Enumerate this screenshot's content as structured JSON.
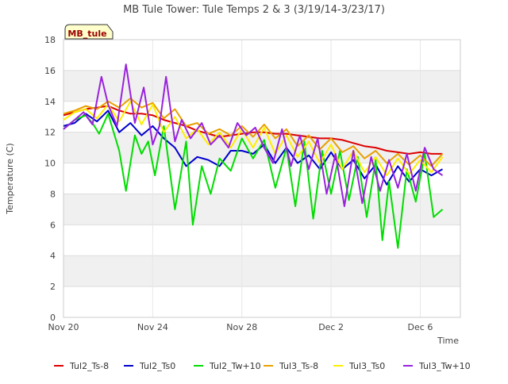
{
  "chart_data": {
    "type": "line",
    "title": "MB Tule Tower: Tule Temps 2 & 3 (3/19/14-3/23/17)",
    "xlabel": "Time",
    "ylabel": "Temperature (C)",
    "station_badge": "MB_tule",
    "ylim": [
      0,
      18
    ],
    "xlim": [
      0,
      17.8
    ],
    "y_ticks": [
      0,
      2,
      4,
      6,
      8,
      10,
      12,
      14,
      16,
      18
    ],
    "x_ticks": [
      {
        "value": 0,
        "label": "Nov 20"
      },
      {
        "value": 4,
        "label": "Nov 24"
      },
      {
        "value": 8,
        "label": "Nov 28"
      },
      {
        "value": 12,
        "label": "Dec 2"
      },
      {
        "value": 16,
        "label": "Dec 6"
      }
    ],
    "grid": true,
    "legend_position": "bottom",
    "series": [
      {
        "name": "Tul2_Ts-8",
        "color": "#dd0000",
        "x": [
          0,
          0.5,
          1,
          1.5,
          2,
          2.5,
          3,
          3.5,
          4,
          4.5,
          5,
          5.5,
          6,
          6.5,
          7,
          7.5,
          8,
          8.5,
          9,
          9.5,
          10,
          10.5,
          11,
          11.5,
          12,
          12.5,
          13,
          13.5,
          14,
          14.5,
          15,
          15.5,
          16,
          16.5,
          17
        ],
        "y": [
          13.1,
          13.3,
          13.5,
          13.6,
          13.7,
          13.4,
          13.2,
          13.2,
          13.1,
          12.8,
          12.6,
          12.4,
          12.1,
          11.9,
          11.7,
          11.8,
          11.9,
          12.0,
          12.0,
          11.9,
          11.9,
          11.8,
          11.7,
          11.6,
          11.6,
          11.5,
          11.3,
          11.1,
          11.0,
          10.8,
          10.7,
          10.6,
          10.7,
          10.6,
          10.6
        ]
      },
      {
        "name": "Tul2_Ts0",
        "color": "#0000cc",
        "x": [
          0,
          0.5,
          1,
          1.5,
          2,
          2.5,
          3,
          3.5,
          4,
          4.5,
          5,
          5.5,
          6,
          6.5,
          7,
          7.5,
          8,
          8.5,
          9,
          9.5,
          10,
          10.5,
          11,
          11.5,
          12,
          12.5,
          13,
          13.5,
          14,
          14.5,
          15,
          15.5,
          16,
          16.5,
          17
        ],
        "y": [
          12.4,
          12.6,
          13.2,
          12.7,
          13.4,
          12.0,
          12.6,
          11.8,
          12.4,
          11.6,
          11.0,
          9.8,
          10.4,
          10.2,
          9.8,
          10.8,
          10.8,
          10.6,
          11.2,
          10.0,
          11.0,
          10.0,
          10.5,
          9.6,
          10.7,
          9.6,
          10.2,
          9.0,
          9.9,
          8.6,
          9.8,
          8.8,
          9.6,
          9.2,
          9.6
        ]
      },
      {
        "name": "Tul2_Tw+10",
        "color": "#00dd00",
        "x": [
          0,
          0.5,
          1,
          1.3,
          1.6,
          2,
          2.5,
          2.8,
          3.2,
          3.5,
          3.8,
          4.1,
          4.5,
          5,
          5.5,
          5.8,
          6.2,
          6.6,
          7,
          7.5,
          8,
          8.5,
          9,
          9.5,
          10,
          10.4,
          10.8,
          11.2,
          11.6,
          12,
          12.4,
          12.8,
          13.2,
          13.6,
          14,
          14.3,
          14.6,
          15,
          15.4,
          15.8,
          16.2,
          16.6,
          17
        ],
        "y": [
          12.2,
          12.8,
          13.1,
          12.6,
          11.9,
          13.2,
          10.8,
          8.2,
          11.8,
          10.6,
          11.4,
          9.2,
          12.4,
          7.0,
          11.4,
          6.0,
          9.8,
          8.0,
          10.3,
          9.5,
          11.6,
          10.3,
          11.5,
          8.4,
          11.0,
          7.2,
          11.4,
          6.4,
          10.8,
          8.0,
          10.8,
          7.6,
          10.4,
          6.5,
          10.2,
          5.0,
          8.8,
          4.5,
          9.6,
          7.5,
          10.6,
          6.5,
          7.0
        ]
      },
      {
        "name": "Tul3_Ts-8",
        "color": "#e8a000",
        "x": [
          0,
          0.5,
          1,
          1.5,
          2,
          2.5,
          3,
          3.5,
          4,
          4.5,
          5,
          5.5,
          6,
          6.5,
          7,
          7.5,
          8,
          8.5,
          9,
          9.5,
          10,
          10.5,
          11,
          11.5,
          12,
          12.5,
          13,
          13.5,
          14,
          14.5,
          15,
          15.5,
          16,
          16.5,
          17
        ],
        "y": [
          13.2,
          13.4,
          13.7,
          13.5,
          14.0,
          13.6,
          14.2,
          13.6,
          13.9,
          12.9,
          13.5,
          12.4,
          12.6,
          11.9,
          12.2,
          11.8,
          12.4,
          11.7,
          12.5,
          11.6,
          12.2,
          11.1,
          11.8,
          10.9,
          11.6,
          10.7,
          11.1,
          10.3,
          10.8,
          10.0,
          10.6,
          9.9,
          10.5,
          9.8,
          10.6
        ]
      },
      {
        "name": "Tul3_Ts0",
        "color": "#ffee00",
        "x": [
          0,
          0.5,
          1,
          1.5,
          2,
          2.5,
          3,
          3.5,
          4,
          4.5,
          5,
          5.5,
          6,
          6.5,
          7,
          7.5,
          8,
          8.5,
          9,
          9.5,
          10,
          10.5,
          11,
          11.5,
          12,
          12.5,
          13,
          13.5,
          14,
          14.5,
          15,
          15.5,
          16,
          16.5,
          17
        ],
        "y": [
          12.8,
          13.3,
          13.5,
          12.9,
          13.8,
          12.7,
          14.0,
          12.5,
          13.8,
          12.0,
          13.0,
          11.6,
          12.2,
          11.2,
          12.0,
          11.0,
          12.2,
          11.0,
          12.3,
          10.6,
          11.8,
          10.4,
          11.4,
          10.0,
          11.2,
          9.6,
          10.8,
          9.4,
          10.4,
          9.2,
          10.3,
          9.3,
          10.2,
          9.4,
          10.4
        ]
      },
      {
        "name": "Tul3_Tw+10",
        "color": "#9922dd",
        "x": [
          0,
          0.5,
          0.9,
          1.3,
          1.7,
          2,
          2.4,
          2.8,
          3.2,
          3.6,
          4,
          4.3,
          4.6,
          5.0,
          5.3,
          5.7,
          6.2,
          6.6,
          7,
          7.4,
          7.8,
          8.2,
          8.6,
          9,
          9.4,
          9.8,
          10.2,
          10.6,
          11,
          11.4,
          11.8,
          12.2,
          12.6,
          13,
          13.4,
          13.8,
          14.2,
          14.6,
          15,
          15.4,
          15.8,
          16.2,
          16.6,
          17
        ],
        "y": [
          12.2,
          12.8,
          13.3,
          12.5,
          15.6,
          13.8,
          12.4,
          16.4,
          12.6,
          14.9,
          11.2,
          12.4,
          15.6,
          11.4,
          12.8,
          11.6,
          12.6,
          11.2,
          11.8,
          11.0,
          12.6,
          11.8,
          12.3,
          11.0,
          10.0,
          12.2,
          9.8,
          11.8,
          9.6,
          11.6,
          8.0,
          10.6,
          7.2,
          10.8,
          7.4,
          10.4,
          8.2,
          10.2,
          8.4,
          10.6,
          8.2,
          11.0,
          9.6,
          9.2
        ]
      }
    ]
  }
}
